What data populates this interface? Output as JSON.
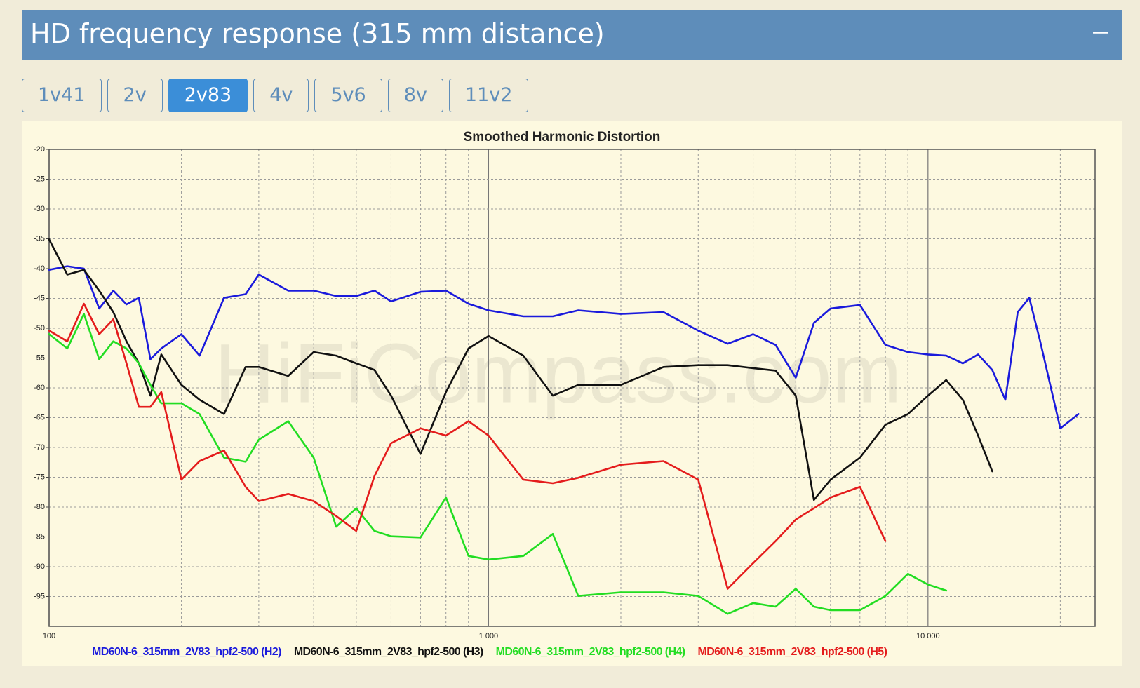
{
  "header": {
    "title": "HD frequency response (315 mm distance)",
    "collapse_icon": "−"
  },
  "tabs": {
    "labels": [
      "1v41",
      "2v",
      "2v83",
      "4v",
      "5v6",
      "8v",
      "11v2"
    ],
    "active": 2
  },
  "chart_data": {
    "type": "line",
    "title": "Smoothed Harmonic Distortion",
    "watermark": "HiFiCompass.com",
    "x": [
      100,
      110,
      120,
      130,
      140,
      150,
      160,
      170,
      180,
      200,
      220,
      250,
      280,
      300,
      350,
      400,
      450,
      500,
      550,
      600,
      700,
      800,
      900,
      1000,
      1200,
      1400,
      1600,
      2000,
      2500,
      3000,
      3500,
      4000,
      4500,
      5000,
      5500,
      6000,
      7000,
      8000,
      9000,
      10000,
      11000,
      12000,
      13000,
      14000,
      15000,
      16000,
      17000,
      18000,
      20000,
      22000
    ],
    "xlim": [
      100,
      24000
    ],
    "xscale": "log",
    "xticks": [
      {
        "value": 100,
        "label": "100"
      },
      {
        "value": 1000,
        "label": "1 000"
      },
      {
        "value": 10000,
        "label": "10 000"
      }
    ],
    "ylim": [
      -100,
      -20
    ],
    "yticks": [
      -20,
      -25,
      -30,
      -35,
      -40,
      -45,
      -50,
      -55,
      -60,
      -65,
      -70,
      -75,
      -80,
      -85,
      -90,
      -95
    ],
    "grid": true,
    "series": [
      {
        "name": "MD60N-6_315mm_2V83_hpf2-500 (H2)",
        "color": "#1a1adc",
        "values": [
          -40.2,
          -39.6,
          -40,
          -46.7,
          -43.7,
          -46,
          -44.9,
          -55.2,
          -53.4,
          -51,
          -54.6,
          -44.9,
          -44.3,
          -41,
          -43.7,
          -43.7,
          -44.6,
          -44.6,
          -43.7,
          -45.5,
          -43.9,
          -43.7,
          -45.9,
          -47,
          -48,
          -48,
          -47,
          -47.6,
          -47.3,
          -50.4,
          -52.6,
          -51,
          -52.8,
          -58.3,
          -49.1,
          -46.7,
          -46.1,
          -52.8,
          -54,
          -54.4,
          -54.6,
          -55.9,
          -54.4,
          -57,
          -62,
          -47.3,
          -44.9,
          -52.2,
          -66.8,
          -64.4
        ]
      },
      {
        "name": "MD60N-6_315mm_2V83_hpf2-500 (H3)",
        "color": "#111111",
        "values": [
          -35.1,
          -41,
          -40.2,
          -43.7,
          -47.3,
          -52.2,
          -55.9,
          -61.3,
          -54.4,
          -59.5,
          -62,
          -64.4,
          -56.5,
          -56.5,
          -58,
          -54,
          -54.6,
          -55.9,
          -57,
          -61.3,
          -71.1,
          -60.7,
          -53.4,
          -51.3,
          -54.6,
          -61.3,
          -59.5,
          -59.5,
          -56.5,
          -56.2,
          -56.2,
          -56.7,
          -57.1,
          -61.3,
          -78.8,
          -75.4,
          -71.7,
          -66.2,
          -64.4,
          -61.3,
          -58.7,
          -62,
          -68,
          -74,
          null,
          null,
          null,
          null,
          null,
          null
        ]
      },
      {
        "name": "MD60N-6_315mm_2V83_hpf2-500 (H4)",
        "color": "#22dd22",
        "values": [
          -51,
          -53.4,
          -47.6,
          -55.2,
          -52.2,
          -53.4,
          -55.9,
          -59.5,
          -62.6,
          -62.6,
          -64.4,
          -71.7,
          -72.4,
          -68.7,
          -65.6,
          -71.7,
          -83.3,
          -80.2,
          -84,
          -84.9,
          -85.1,
          -78.4,
          -88.2,
          -88.8,
          -88.2,
          -84.5,
          -94.9,
          -94.3,
          -94.3,
          -94.9,
          -97.9,
          -96.1,
          -96.7,
          -93.7,
          -96.7,
          -97.3,
          -97.3,
          -94.9,
          -91.2,
          -93,
          -94,
          null,
          null,
          null,
          null,
          null,
          null,
          null,
          null,
          null
        ]
      },
      {
        "name": "MD60N-6_315mm_2V83_hpf2-500 (H5)",
        "color": "#e41c1c",
        "values": [
          -50.4,
          -52.2,
          -45.9,
          -51,
          -48.5,
          -55.9,
          -63.2,
          -63.2,
          -60.7,
          -75.4,
          -72.3,
          -70.5,
          -76.6,
          -79,
          -77.8,
          -79,
          -81.5,
          -84,
          -74.8,
          -69.3,
          -66.8,
          -68,
          -65.6,
          -68,
          -75.4,
          -76,
          -75.1,
          -72.9,
          -72.3,
          -75.4,
          -93.7,
          -89.4,
          -85.7,
          -82.1,
          -80.2,
          -78.4,
          -76.6,
          -85.7,
          null,
          null,
          null,
          null,
          null,
          null,
          null,
          null,
          null,
          null,
          null,
          null
        ]
      }
    ]
  }
}
